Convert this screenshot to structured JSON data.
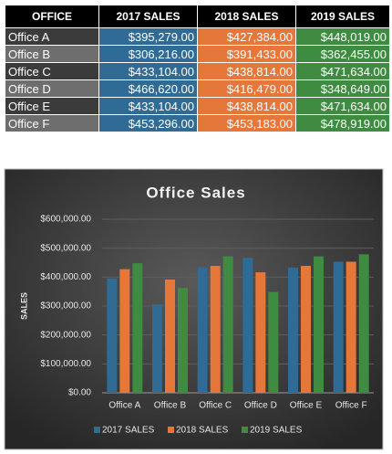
{
  "table": {
    "header": [
      "OFFICE",
      "2017 SALES",
      "2018 SALES",
      "2019 SALES"
    ],
    "rows": [
      [
        "Office A",
        "$395,279.00",
        "$427,384.00",
        "$448,019.00"
      ],
      [
        "Office B",
        "$306,216.00",
        "$391,433.00",
        "$362,455.00"
      ],
      [
        "Office C",
        "$433,104.00",
        "$438,814.00",
        "$471,634.00"
      ],
      [
        "Office D",
        "$466,620.00",
        "$416,479.00",
        "$348,649.00"
      ],
      [
        "Office E",
        "$433,104.00",
        "$438,814.00",
        "$471,634.00"
      ],
      [
        "Office F",
        "$453,296.00",
        "$453,183.00",
        "$478,919.00"
      ]
    ]
  },
  "chart_data": {
    "type": "bar",
    "title": "Office Sales",
    "y_label": "SALES",
    "categories": [
      "Office A",
      "Office B",
      "Office C",
      "Office D",
      "Office E",
      "Office F"
    ],
    "series": [
      {
        "name": "2017 SALES",
        "color": "#2f6b94",
        "values": [
          395279,
          306216,
          433104,
          466620,
          433104,
          453296
        ]
      },
      {
        "name": "2018 SALES",
        "color": "#e5773b",
        "values": [
          427384,
          391433,
          438814,
          416479,
          438814,
          453183
        ]
      },
      {
        "name": "2019 SALES",
        "color": "#3f8b41",
        "values": [
          448019,
          362455,
          471634,
          348649,
          471634,
          478919
        ]
      }
    ],
    "ylim": [
      0,
      600000
    ],
    "yticks": [
      {
        "value": 0,
        "label": "$0.00"
      },
      {
        "value": 100000,
        "label": "$100,000.00"
      },
      {
        "value": 200000,
        "label": "$200,000.00"
      },
      {
        "value": 300000,
        "label": "$300,000.00"
      },
      {
        "value": 400000,
        "label": "$400,000.00"
      },
      {
        "value": 500000,
        "label": "$500,000.00"
      },
      {
        "value": 600000,
        "label": "$600,000.00"
      }
    ],
    "grid": true,
    "legend": "bottom"
  }
}
